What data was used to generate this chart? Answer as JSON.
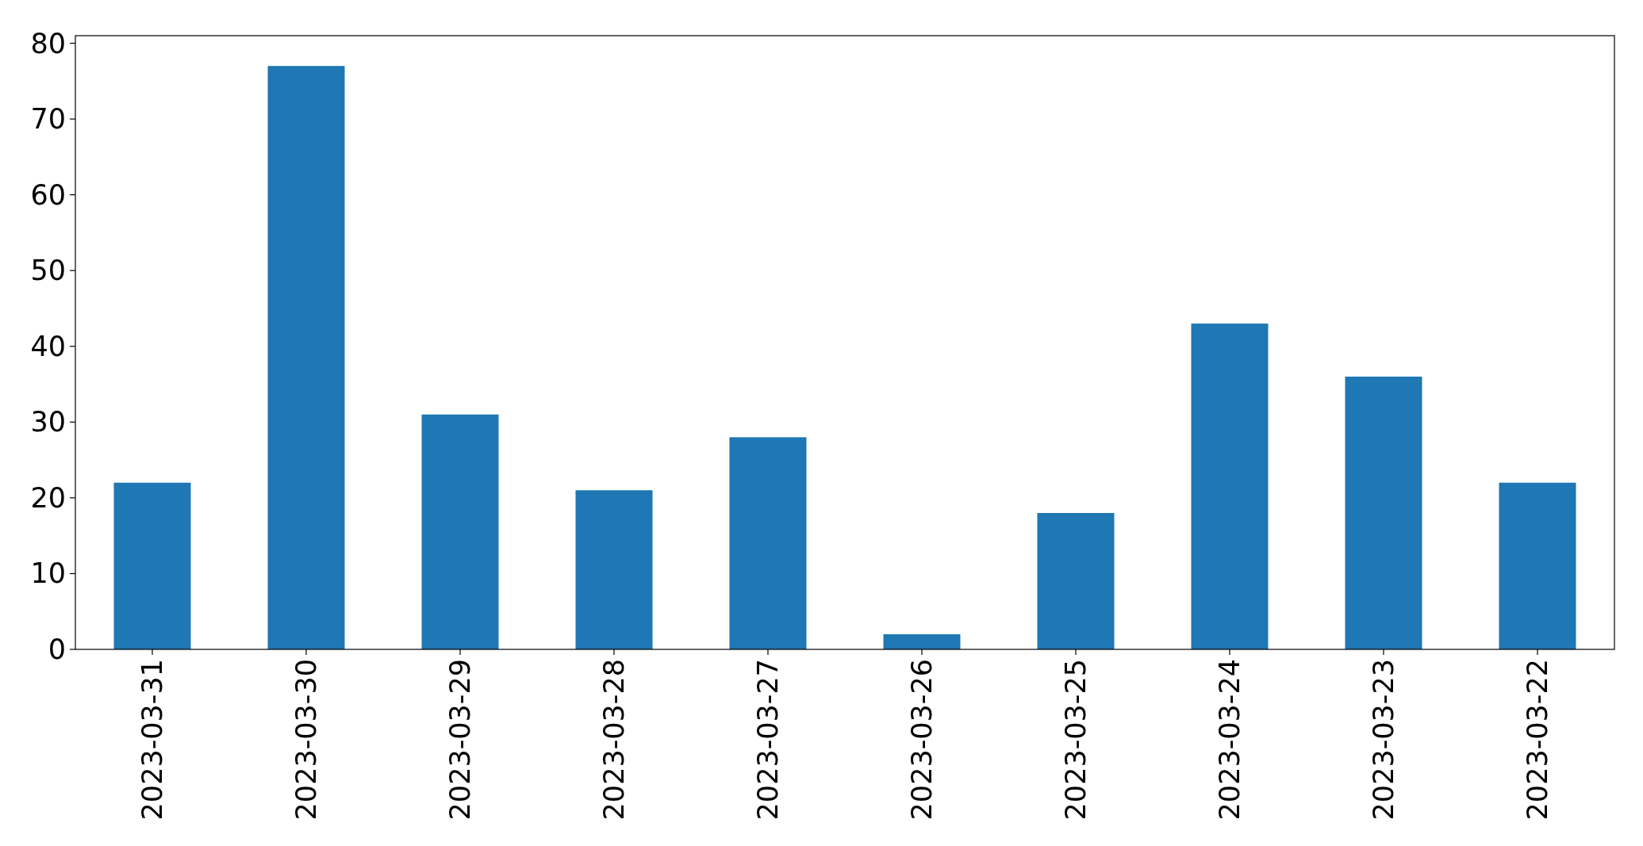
{
  "chart_data": {
    "type": "bar",
    "categories": [
      "2023-03-31",
      "2023-03-30",
      "2023-03-29",
      "2023-03-28",
      "2023-03-27",
      "2023-03-26",
      "2023-03-25",
      "2023-03-24",
      "2023-03-23",
      "2023-03-22"
    ],
    "values": [
      22,
      77,
      31,
      21,
      28,
      2,
      18,
      43,
      36,
      22
    ],
    "color": "#1f77b4",
    "ylim": [
      0,
      81
    ],
    "yticks": [
      0,
      10,
      20,
      30,
      40,
      50,
      60,
      70,
      80
    ]
  }
}
